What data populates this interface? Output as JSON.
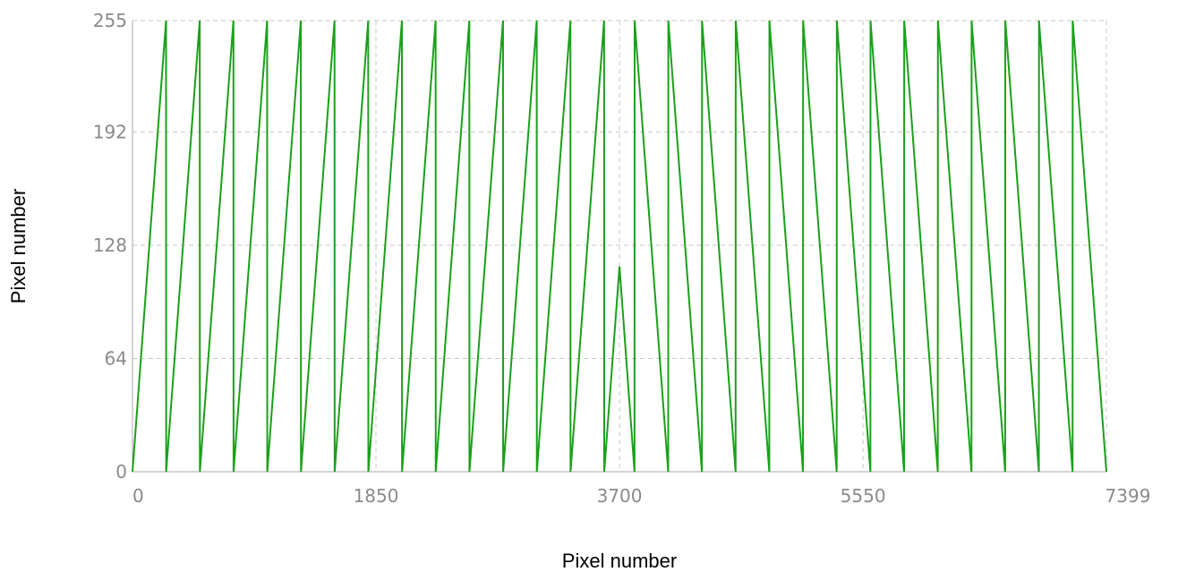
{
  "chart_data": {
    "type": "line",
    "title": "",
    "xlabel": "Pixel number",
    "ylabel": "Pixel number",
    "xlim": [
      0,
      7399
    ],
    "ylim": [
      0,
      255
    ],
    "xticks": [
      0,
      1850,
      3700,
      5550,
      7399
    ],
    "yticks": [
      0,
      64,
      128,
      192,
      255
    ],
    "grid": true,
    "legend": "none",
    "colors": {
      "series": "#1aa01a",
      "grid": "#c8c8c8",
      "tick_text": "#8a8a8a"
    },
    "series": [
      {
        "x": [
          0,
          255,
          256,
          511,
          512,
          767,
          768,
          1023,
          1024,
          1279,
          1280,
          1535,
          1536,
          1791,
          1792,
          2047,
          2048,
          2303,
          2304,
          2559,
          2560,
          2815,
          2816,
          3071,
          3072,
          3327,
          3328,
          3583,
          3584,
          3700,
          3814,
          3815,
          4070,
          4071,
          4326,
          4327,
          4582,
          4583,
          4838,
          4839,
          5094,
          5095,
          5350,
          5351,
          5606,
          5607,
          5862,
          5863,
          6118,
          6119,
          6374,
          6375,
          6630,
          6631,
          6886,
          6887,
          7142,
          7143,
          7399
        ],
        "y": [
          0,
          255,
          0,
          255,
          0,
          255,
          0,
          255,
          0,
          255,
          0,
          255,
          0,
          255,
          0,
          255,
          0,
          255,
          0,
          255,
          0,
          255,
          0,
          255,
          0,
          255,
          0,
          255,
          0,
          116,
          0,
          255,
          0,
          255,
          0,
          255,
          0,
          255,
          0,
          255,
          0,
          255,
          0,
          255,
          0,
          255,
          0,
          255,
          0,
          255,
          0,
          255,
          0,
          255,
          0,
          255,
          0,
          255,
          0
        ]
      }
    ]
  }
}
